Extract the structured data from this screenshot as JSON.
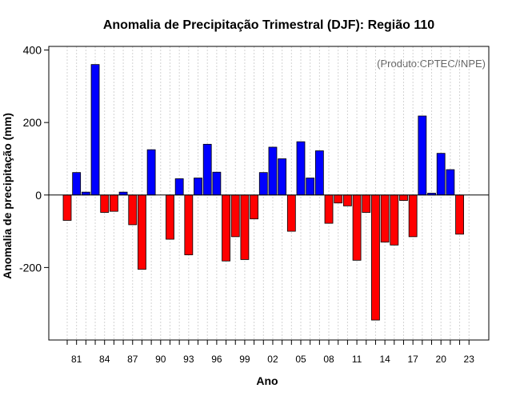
{
  "chart_data": {
    "type": "bar",
    "title": "Anomalia de Precipitação Trimestral (DJF): Região 110",
    "xlabel": "Ano",
    "ylabel": "Anomalia de precipitação (mm)",
    "source": "(Produto:CPTEC/INPE)",
    "ylim": [
      -400,
      410
    ],
    "yticks": [
      -200,
      0,
      200,
      400
    ],
    "grid": "vertical dotted",
    "colors": {
      "positive": "#0000ff",
      "negative": "#ff0000",
      "zero_line": "#000000",
      "grid": "#d3d3d3"
    },
    "categories": [
      "80",
      "81",
      "82",
      "83",
      "84",
      "85",
      "86",
      "87",
      "88",
      "89",
      "90",
      "91",
      "92",
      "93",
      "94",
      "95",
      "96",
      "97",
      "98",
      "99",
      "00",
      "01",
      "02",
      "03",
      "04",
      "05",
      "06",
      "07",
      "08",
      "09",
      "10",
      "11",
      "12",
      "13",
      "14",
      "15",
      "16",
      "17",
      "18",
      "19",
      "20",
      "21",
      "22",
      "23"
    ],
    "x_tick_labels": [
      "81",
      "84",
      "87",
      "90",
      "93",
      "96",
      "99",
      "02",
      "05",
      "08",
      "11",
      "14",
      "17",
      "20",
      "23"
    ],
    "values": [
      -70,
      62,
      8,
      360,
      -48,
      -45,
      8,
      -82,
      -205,
      125,
      0,
      -122,
      45,
      -165,
      47,
      140,
      63,
      -182,
      -115,
      -178,
      -66,
      62,
      132,
      100,
      -100,
      147,
      47,
      122,
      -78,
      -22,
      -30,
      -180,
      -48,
      -345,
      -130,
      -138,
      -15,
      -115,
      218,
      5,
      115,
      70,
      -108,
      0
    ]
  }
}
